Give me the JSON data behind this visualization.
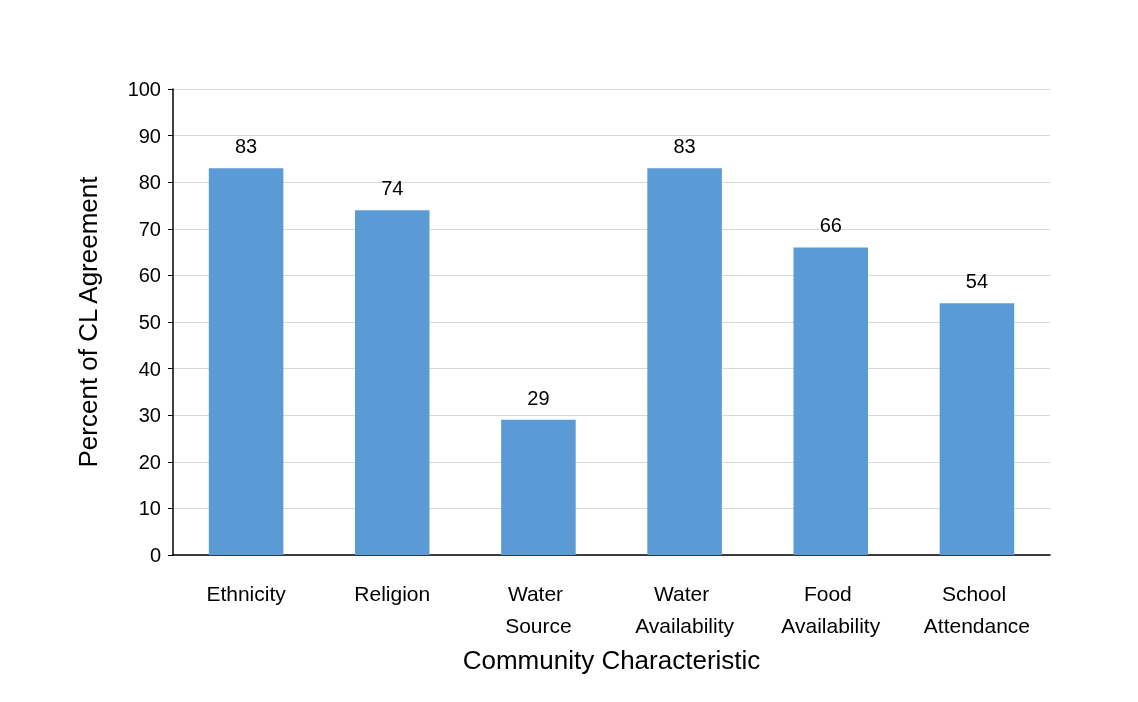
{
  "chart_data": {
    "type": "bar",
    "xlabel": "Community Characteristic",
    "ylabel": "Percent of CL Agreement",
    "categories": [
      "Ethnicity",
      "Religion",
      "Water Source",
      "Water Availability",
      "Food Availability",
      "School Attendance"
    ],
    "values": [
      83,
      74,
      29,
      83,
      66,
      54
    ],
    "color": "#5b9bd5",
    "ylim": [
      0,
      100
    ],
    "yticks": [
      0,
      10,
      20,
      30,
      40,
      50,
      60,
      70,
      80,
      90,
      100
    ],
    "grid": "y",
    "data_labels": true
  }
}
